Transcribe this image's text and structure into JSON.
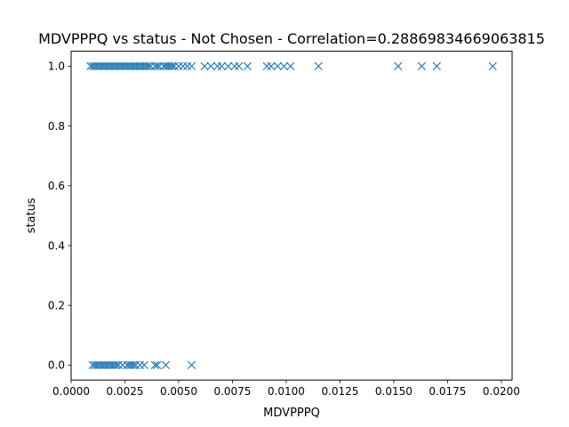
{
  "chart_data": {
    "type": "scatter",
    "title": "MDVPPPQ vs status - Not Chosen - Correlation=0.28869834669063815",
    "xlabel": "MDVPPPQ",
    "ylabel": "status",
    "xlim": [
      0.0,
      0.0205
    ],
    "ylim": [
      -0.05,
      1.05
    ],
    "xticks": [
      "0.0000",
      "0.0025",
      "0.0050",
      "0.0075",
      "0.0100",
      "0.0125",
      "0.0150",
      "0.0175",
      "0.0200"
    ],
    "yticks": [
      "0.0",
      "0.2",
      "0.4",
      "0.6",
      "0.8",
      "1.0"
    ],
    "marker": "x",
    "color": "#1f77b4",
    "grid": false,
    "series": [
      {
        "x": [
          0.0009,
          0.001,
          0.0011,
          0.0012,
          0.0013,
          0.0014,
          0.0015,
          0.0016,
          0.0017,
          0.0018,
          0.0019,
          0.002,
          0.0021,
          0.0022,
          0.0023,
          0.0024,
          0.0025,
          0.0026,
          0.0027,
          0.0028,
          0.0029,
          0.003,
          0.0031,
          0.0032,
          0.0033,
          0.0034,
          0.0035,
          0.0036,
          0.0037,
          0.0039,
          0.004,
          0.0041,
          0.0043,
          0.0044,
          0.0045,
          0.0046,
          0.0047,
          0.0048,
          0.005,
          0.0052,
          0.0054,
          0.0056,
          0.0062,
          0.0065,
          0.0068,
          0.007,
          0.0073,
          0.0076,
          0.0078,
          0.0082,
          0.0091,
          0.0093,
          0.0096,
          0.0099,
          0.0102,
          0.0115,
          0.0152,
          0.0163,
          0.017,
          0.0196
        ],
        "y": [
          1,
          1,
          1,
          1,
          1,
          1,
          1,
          1,
          1,
          1,
          1,
          1,
          1,
          1,
          1,
          1,
          1,
          1,
          1,
          1,
          1,
          1,
          1,
          1,
          1,
          1,
          1,
          1,
          1,
          1,
          1,
          1,
          1,
          1,
          1,
          1,
          1,
          1,
          1,
          1,
          1,
          1,
          1,
          1,
          1,
          1,
          1,
          1,
          1,
          1,
          1,
          1,
          1,
          1,
          1,
          1,
          1,
          1,
          1,
          1
        ]
      },
      {
        "x": [
          0.001,
          0.0011,
          0.0012,
          0.0013,
          0.0014,
          0.0015,
          0.0016,
          0.0017,
          0.0018,
          0.0019,
          0.002,
          0.0021,
          0.0022,
          0.0024,
          0.0026,
          0.0027,
          0.0028,
          0.0029,
          0.003,
          0.0032,
          0.0034,
          0.0039,
          0.004,
          0.0044,
          0.0056
        ],
        "y": [
          0,
          0,
          0,
          0,
          0,
          0,
          0,
          0,
          0,
          0,
          0,
          0,
          0,
          0,
          0,
          0,
          0,
          0,
          0,
          0,
          0,
          0,
          0,
          0,
          0
        ]
      }
    ]
  }
}
